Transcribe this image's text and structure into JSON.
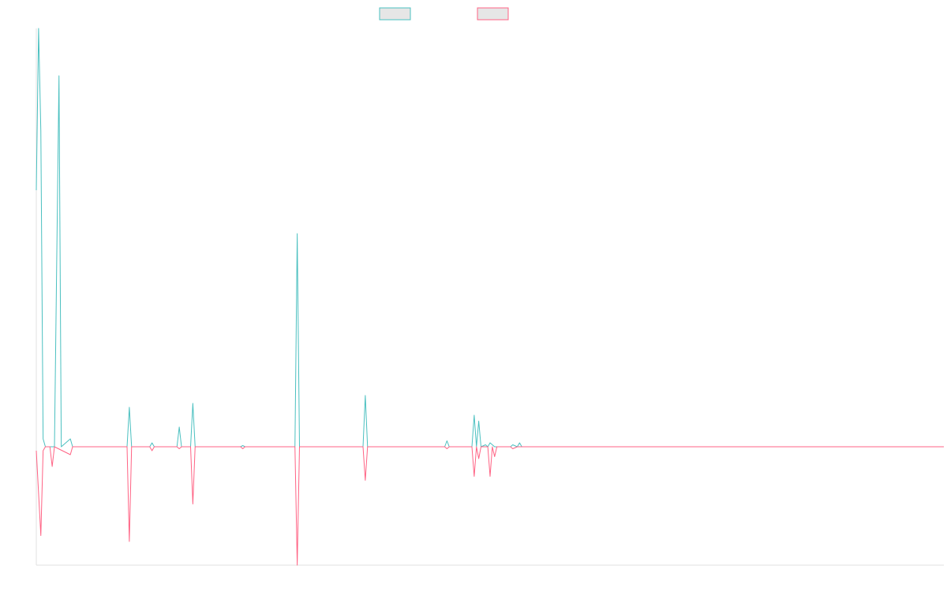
{
  "chart_data": {
    "type": "line",
    "title": "",
    "xlabel": "",
    "ylabel": "",
    "ylim": [
      -3,
      10.6
    ],
    "xlim": [
      0,
      200
    ],
    "grid": false,
    "legend": {
      "placement": "top-center",
      "labels": [
        "",
        ""
      ]
    },
    "series": [
      {
        "color": "#4bc0c0",
        "fill": "#e6e6e6",
        "points": [
          [
            0,
            6.5
          ],
          [
            0.5,
            10.6
          ],
          [
            1,
            8.0
          ],
          [
            1.5,
            0.2
          ],
          [
            2,
            0.0
          ],
          [
            3,
            0.0
          ],
          [
            4,
            0.0
          ],
          [
            5,
            9.4
          ],
          [
            5.5,
            0.0
          ],
          [
            7.5,
            0.2
          ],
          [
            8,
            0.0
          ],
          [
            20,
            0.0
          ],
          [
            20.5,
            1.0
          ],
          [
            21,
            0.0
          ],
          [
            25,
            0.0
          ],
          [
            25.5,
            0.1
          ],
          [
            26,
            0.0
          ],
          [
            31,
            0.0
          ],
          [
            31.5,
            0.5
          ],
          [
            32,
            0.0
          ],
          [
            33,
            0.0
          ],
          [
            34,
            0.0
          ],
          [
            34.5,
            1.1
          ],
          [
            35,
            0.0
          ],
          [
            45,
            0.0
          ],
          [
            45.5,
            0.03
          ],
          [
            46,
            0.0
          ],
          [
            57,
            0.0
          ],
          [
            57.5,
            5.4
          ],
          [
            58,
            0.0
          ],
          [
            72,
            0.0
          ],
          [
            72.5,
            1.3
          ],
          [
            73,
            0.0
          ],
          [
            90,
            0.0
          ],
          [
            90.5,
            0.15
          ],
          [
            91,
            0.0
          ],
          [
            96,
            0.0
          ],
          [
            96.5,
            0.8
          ],
          [
            97,
            0.0
          ],
          [
            97.5,
            0.65
          ],
          [
            98,
            0.0
          ],
          [
            99,
            0.05
          ],
          [
            99.5,
            0.0
          ],
          [
            100,
            0.1
          ],
          [
            100.5,
            0.05
          ],
          [
            101,
            0.0
          ],
          [
            104.5,
            0.0
          ],
          [
            105,
            0.05
          ],
          [
            106,
            0.0
          ],
          [
            106.5,
            0.1
          ],
          [
            107,
            0.0
          ],
          [
            200,
            0.0
          ]
        ]
      },
      {
        "color": "#ff6384",
        "fill": "#e6e6e6",
        "points": [
          [
            0,
            -0.1
          ],
          [
            1,
            -2.25
          ],
          [
            1.5,
            -0.1
          ],
          [
            2,
            0.0
          ],
          [
            3,
            0.0
          ],
          [
            3.5,
            -0.5
          ],
          [
            4,
            0.0
          ],
          [
            7.5,
            -0.2
          ],
          [
            8,
            0.0
          ],
          [
            20,
            0.0
          ],
          [
            20.5,
            -2.4
          ],
          [
            21,
            0.0
          ],
          [
            25,
            0.0
          ],
          [
            25.5,
            -0.1
          ],
          [
            26,
            0.0
          ],
          [
            31,
            0.0
          ],
          [
            31.5,
            -0.05
          ],
          [
            32,
            0.0
          ],
          [
            33,
            0.0
          ],
          [
            34,
            0.0
          ],
          [
            34.5,
            -1.45
          ],
          [
            35,
            0.0
          ],
          [
            45,
            0.0
          ],
          [
            45.5,
            -0.05
          ],
          [
            46,
            0.0
          ],
          [
            57,
            0.0
          ],
          [
            57.5,
            -3.0
          ],
          [
            58,
            0.0
          ],
          [
            72,
            0.0
          ],
          [
            72.5,
            -0.85
          ],
          [
            73,
            0.0
          ],
          [
            90,
            0.0
          ],
          [
            90.5,
            -0.05
          ],
          [
            91,
            0.0
          ],
          [
            96,
            0.0
          ],
          [
            96.5,
            -0.75
          ],
          [
            97,
            0.0
          ],
          [
            97.5,
            -0.3
          ],
          [
            98,
            0.0
          ],
          [
            99.5,
            0.0
          ],
          [
            100,
            -0.75
          ],
          [
            100.5,
            0.0
          ],
          [
            101,
            -0.25
          ],
          [
            101.5,
            0.0
          ],
          [
            104.5,
            0.0
          ],
          [
            105,
            -0.05
          ],
          [
            106,
            0.0
          ],
          [
            200,
            0.0
          ]
        ]
      }
    ]
  }
}
